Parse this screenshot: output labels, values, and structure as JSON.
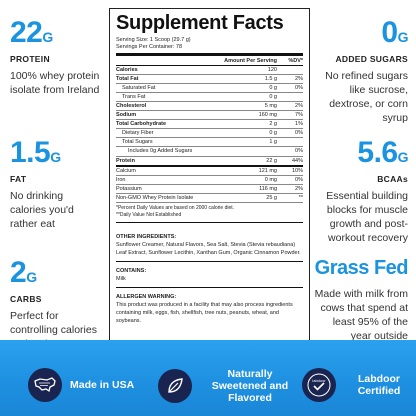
{
  "left": [
    {
      "value": "22",
      "unit": "G",
      "label": "PROTEIN",
      "desc": "100% whey protein isolate from Ireland"
    },
    {
      "value": "1.5",
      "unit": "G",
      "label": "FAT",
      "desc": "No drinking calories you'd rather eat"
    },
    {
      "value": "2",
      "unit": "G",
      "label": "CARBS",
      "desc": "Perfect for controlling calories and carbs"
    }
  ],
  "right": [
    {
      "value": "0",
      "unit": "G",
      "label": "ADDED SUGARS",
      "desc": "No refined sugars like sucrose, dextrose, or corn syrup"
    },
    {
      "value": "5.6",
      "unit": "G",
      "label": "BCAAs",
      "desc": "Essential building blocks for muscle growth and post-workout recovery"
    },
    {
      "value": "Grass Fed",
      "unit": "",
      "label": "",
      "desc": "Made with milk from cows that spend at least 95% of the year outside"
    }
  ],
  "facts": {
    "title": "Supplement Facts",
    "serving_size": "Serving Size: 1 Scoop (29.7 g)",
    "servings_per": "Servings Per Container: 78",
    "col_amount": "Amount Per Serving",
    "col_dv": "%DV*",
    "rows": [
      {
        "label": "Calories",
        "amount": "120",
        "dv": "",
        "style": "b"
      },
      {
        "label": "Total Fat",
        "amount": "1.5 g",
        "dv": "2%",
        "style": "b"
      },
      {
        "label": "Saturated Fat",
        "amount": "0 g",
        "dv": "0%",
        "style": "i1"
      },
      {
        "label": "Trans Fat",
        "amount": "0 g",
        "dv": "",
        "style": "i1"
      },
      {
        "label": "Cholesterol",
        "amount": "5 mg",
        "dv": "2%",
        "style": "b"
      },
      {
        "label": "Sodium",
        "amount": "160 mg",
        "dv": "7%",
        "style": "b"
      },
      {
        "label": "Total Carbohydrate",
        "amount": "2 g",
        "dv": "1%",
        "style": "b"
      },
      {
        "label": "Dietary Fiber",
        "amount": "0 g",
        "dv": "0%",
        "style": "i1"
      },
      {
        "label": "Total Sugars",
        "amount": "1 g",
        "dv": "",
        "style": "i1"
      },
      {
        "label": "Includes 0g Added Sugars",
        "amount": "",
        "dv": "0%",
        "style": "i2"
      },
      {
        "label": "Protein",
        "amount": "22 g",
        "dv": "44%",
        "style": "b sep"
      },
      {
        "label": "Calcium",
        "amount": "121 mg",
        "dv": "10%",
        "style": ""
      },
      {
        "label": "Iron",
        "amount": "0 mg",
        "dv": "0%",
        "style": ""
      },
      {
        "label": "Potassium",
        "amount": "116 mg",
        "dv": "2%",
        "style": ""
      },
      {
        "label": "Non-GMO Whey Protein Isolate",
        "amount": "25 g",
        "dv": "**",
        "style": ""
      }
    ],
    "note1": "*Percent Daily Values are based on 2000 calorie diet.",
    "note2": "**Daily Value Not Established",
    "ingredients_title": "OTHER INGREDIENTS:",
    "ingredients": "Sunflower Creamer, Natural Flavors, Sea Salt, Stevia (Stevia rebaudiana) Leaf Extract, Sunflower Lecithin, Xanthan Gum, Organic Cinnamon Powder.",
    "contains_title": "CONTAINS:",
    "contains": "Milk",
    "allergen_title": "ALLERGEN WARNING:",
    "allergen": "This product was produced in a facility that may also process ingredients containing milk, eggs, fish, shellfish, tree nuts, peanuts, wheat, and soybeans."
  },
  "badges": [
    {
      "icon": "usa-map-icon",
      "text": "Made in USA"
    },
    {
      "icon": "leaf-icon",
      "text": "Naturally Sweetened and Flavored"
    },
    {
      "icon": "labdoor-icon",
      "text": "Labdoor Certified",
      "icon_text": "labdoor"
    }
  ],
  "colors": {
    "accent": "#1a93e0",
    "banner": "#2aa1ee",
    "badge_bg": "#1a2450"
  }
}
